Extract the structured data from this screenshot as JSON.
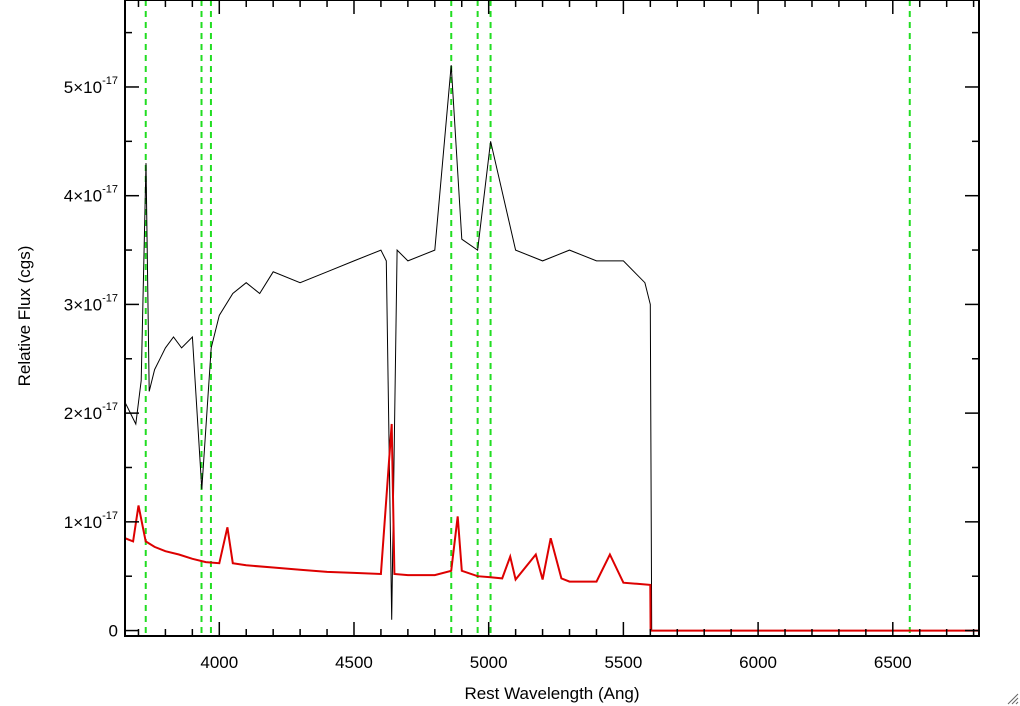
{
  "chart_data": {
    "type": "line",
    "xlabel": "Rest Wavelength (Ang)",
    "ylabel": "Relative Flux (cgs)",
    "xlim": [
      3650,
      6820
    ],
    "ylim": [
      -5e-19,
      5.8e-17
    ],
    "x_ticks": [
      4000,
      4500,
      5000,
      5500,
      6000,
      6500
    ],
    "x_tick_labels": [
      "4000",
      "4500",
      "5000",
      "5500",
      "6000",
      "6500"
    ],
    "y_ticks": [
      0,
      1e-17,
      2e-17,
      3e-17,
      4e-17,
      5e-17
    ],
    "y_tick_labels": [
      {
        "mantissa": "0",
        "exp": ""
      },
      {
        "mantissa": "1×10",
        "exp": "-17"
      },
      {
        "mantissa": "2×10",
        "exp": "-17"
      },
      {
        "mantissa": "3×10",
        "exp": "-17"
      },
      {
        "mantissa": "4×10",
        "exp": "-17"
      },
      {
        "mantissa": "5×10",
        "exp": "-17"
      }
    ],
    "grid": false,
    "legend": "none",
    "reference_lines": [
      3727,
      3934,
      3969,
      4861,
      4959,
      5007,
      6563
    ],
    "series": [
      {
        "color": "#000000",
        "style": "solid",
        "description_x": [
          3650,
          3670,
          3690,
          3710,
          3728,
          3740,
          3760,
          3780,
          3800,
          3830,
          3860,
          3900,
          3935,
          3970,
          4000,
          4050,
          4100,
          4150,
          4200,
          4300,
          4400,
          4500,
          4600,
          4620,
          4640,
          4660,
          4700,
          4800,
          4861,
          4900,
          4959,
          5007,
          5100,
          5200,
          5300,
          5400,
          5500,
          5580,
          5600,
          5605,
          5610,
          6820
        ],
        "x": [
          3650,
          3670,
          3690,
          3710,
          3728,
          3740,
          3760,
          3780,
          3800,
          3830,
          3860,
          3900,
          3935,
          3970,
          4000,
          4050,
          4100,
          4150,
          4200,
          4300,
          4400,
          4500,
          4600,
          4620,
          4640,
          4660,
          4700,
          4800,
          4861,
          4900,
          4959,
          5007,
          5100,
          5200,
          5300,
          5400,
          5500,
          5580,
          5600,
          5605,
          5610,
          6820
        ],
        "y": [
          2.1e-17,
          2e-17,
          1.9e-17,
          2.3e-17,
          4.3e-17,
          2.2e-17,
          2.4e-17,
          2.5e-17,
          2.6e-17,
          2.7e-17,
          2.6e-17,
          2.7e-17,
          1.3e-17,
          2.6e-17,
          2.9e-17,
          3.1e-17,
          3.2e-17,
          3.1e-17,
          3.3e-17,
          3.2e-17,
          3.3e-17,
          3.4e-17,
          3.5e-17,
          3.4e-17,
          1e-18,
          3.5e-17,
          3.4e-17,
          3.5e-17,
          5.2e-17,
          3.6e-17,
          3.5e-17,
          4.5e-17,
          3.5e-17,
          3.4e-17,
          3.5e-17,
          3.4e-17,
          3.4e-17,
          3.2e-17,
          3e-17,
          0.0,
          0.0,
          0.0
        ]
      },
      {
        "color": "#dd0000",
        "style": "solid",
        "x": [
          3650,
          3680,
          3700,
          3727,
          3760,
          3800,
          3850,
          3900,
          3950,
          4000,
          4030,
          4050,
          4100,
          4200,
          4300,
          4400,
          4500,
          4600,
          4640,
          4650,
          4700,
          4800,
          4861,
          4885,
          4900,
          4959,
          5007,
          5050,
          5080,
          5100,
          5175,
          5200,
          5230,
          5270,
          5300,
          5400,
          5450,
          5500,
          5550,
          5600,
          5601,
          6820
        ],
        "y": [
          8.5e-18,
          8.2e-18,
          1.15e-17,
          8.2e-18,
          7.7e-18,
          7.3e-18,
          7e-18,
          6.6e-18,
          6.3e-18,
          6.2e-18,
          9.5e-18,
          6.2e-18,
          6e-18,
          5.8e-18,
          5.6e-18,
          5.4e-18,
          5.3e-18,
          5.2e-18,
          1.9e-17,
          5.2e-18,
          5.1e-18,
          5.1e-18,
          5.5e-18,
          1.05e-17,
          5.5e-18,
          5e-18,
          4.9e-18,
          4.8e-18,
          6.8e-18,
          4.7e-18,
          7e-18,
          4.7e-18,
          8.5e-18,
          4.8e-18,
          4.5e-18,
          4.5e-18,
          7e-18,
          4.4e-18,
          4.3e-18,
          4.2e-18,
          0.0,
          0.0
        ]
      }
    ]
  }
}
